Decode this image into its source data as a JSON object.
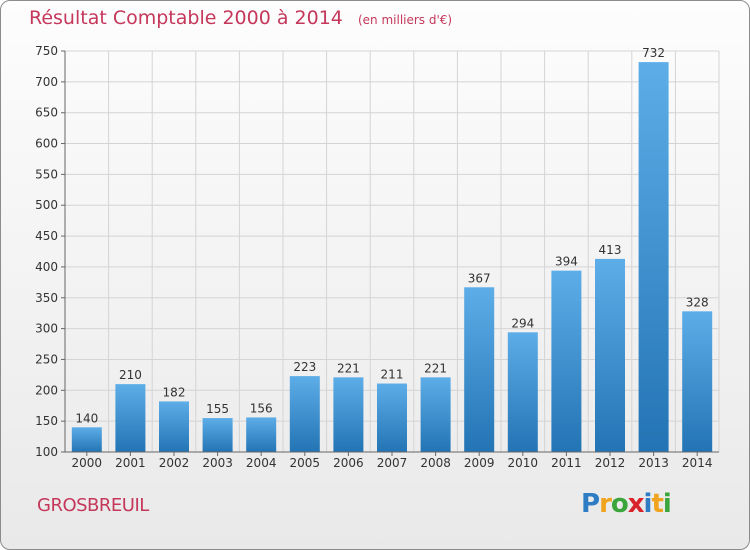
{
  "title": "Résultat Comptable 2000 à 2014",
  "subtitle": "(en milliers d'€)",
  "town": "GROSBREUIL",
  "logo": {
    "letters": [
      "P",
      "r",
      "o",
      "x",
      "i",
      "t",
      "i"
    ],
    "colors": [
      "#2e7cc4",
      "#f0a31c",
      "#3aa53a",
      "#d8232a",
      "#2e7cc4",
      "#f0a31c",
      "#3aa53a"
    ]
  },
  "chart_data": {
    "type": "bar",
    "title": "Résultat Comptable 2000 à 2014",
    "subtitle": "(en milliers d'€)",
    "categories": [
      "2000",
      "2001",
      "2002",
      "2003",
      "2004",
      "2005",
      "2006",
      "2007",
      "2008",
      "2009",
      "2010",
      "2011",
      "2012",
      "2013",
      "2014"
    ],
    "values": [
      140,
      210,
      182,
      155,
      156,
      223,
      221,
      211,
      221,
      367,
      294,
      394,
      413,
      732,
      328
    ],
    "ylim": [
      100,
      750
    ],
    "yticks": [
      100,
      150,
      200,
      250,
      300,
      350,
      400,
      450,
      500,
      550,
      600,
      650,
      700,
      750
    ],
    "grid": true,
    "bar_color_top": "#5dade8",
    "bar_color_bottom": "#2374b4"
  }
}
